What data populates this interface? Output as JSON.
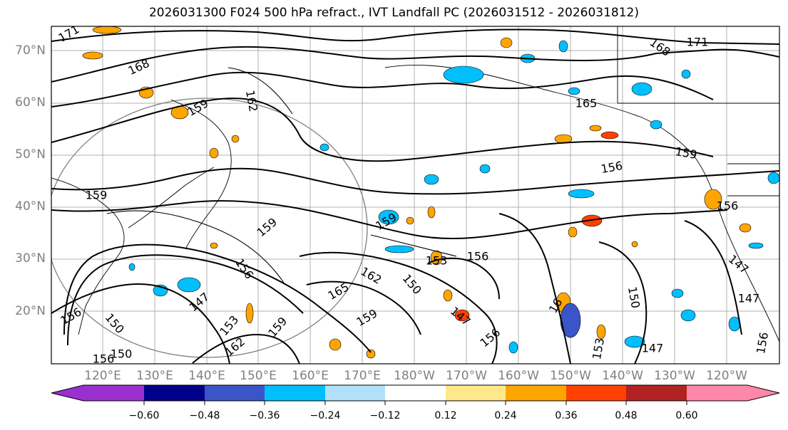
{
  "title": "2026031300 F024 500 hPa refract., IVT Landfall PC (2026031512 - 2026031812)",
  "map": {
    "lat_labels": [
      "70°N",
      "60°N",
      "50°N",
      "40°N",
      "30°N",
      "20°N"
    ],
    "lon_labels": [
      "120°E",
      "130°E",
      "140°E",
      "150°E",
      "160°E",
      "170°E",
      "180°W",
      "170°W",
      "160°W",
      "150°W",
      "140°W",
      "130°W",
      "120°W"
    ],
    "contour_labels": [
      "171",
      "168",
      "168",
      "171",
      "159",
      "162",
      "165",
      "159",
      "156",
      "159",
      "156",
      "159",
      "159",
      "153",
      "156",
      "162",
      "150",
      "156",
      "165",
      "147",
      "156",
      "162",
      "159",
      "147",
      "150",
      "156",
      "16",
      "150",
      "153",
      "147",
      "147",
      "156",
      "150",
      "153",
      "159",
      "156",
      "147"
    ]
  },
  "colorbar": {
    "ticks": [
      "−0.60",
      "−0.48",
      "−0.36",
      "−0.24",
      "−0.12",
      "0.12",
      "0.24",
      "0.36",
      "0.48",
      "0.60"
    ],
    "colors": [
      "#9b30d0",
      "#00008b",
      "#3a55c8",
      "#00bfff",
      "#b0e0fa",
      "#ffffff",
      "#ffe88a",
      "#ffa500",
      "#ff4000",
      "#b22222",
      "#ff88aa"
    ],
    "extend_low_color": "#9b30d0",
    "extend_high_color": "#ff88aa"
  }
}
